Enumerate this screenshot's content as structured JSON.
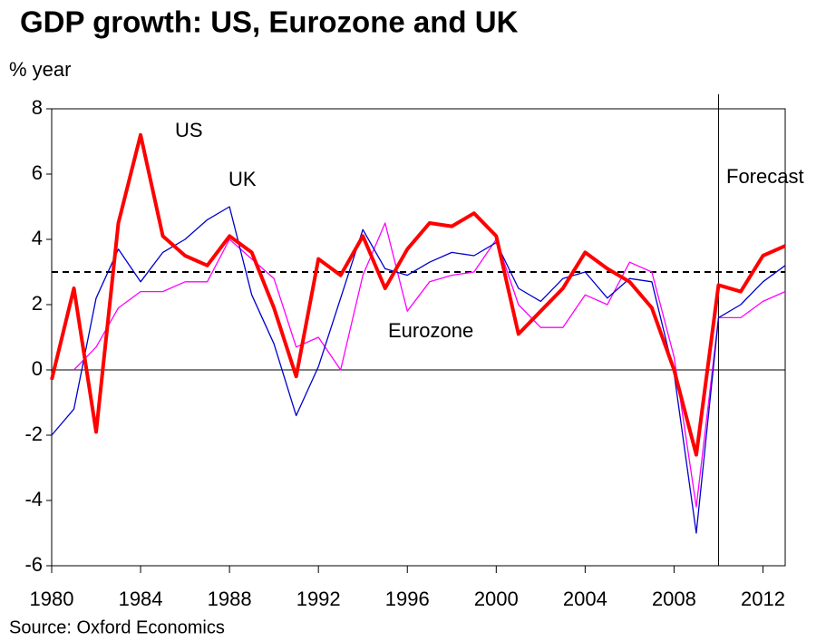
{
  "chart_data": {
    "type": "line",
    "title": "GDP growth: US, Eurozone and UK",
    "y_label": "% year",
    "source": "Source: Oxford Economics",
    "forecast_label": "Forecast",
    "forecast_start": 2010,
    "reference_line": 3,
    "x": [
      1980,
      1981,
      1982,
      1983,
      1984,
      1985,
      1986,
      1987,
      1988,
      1989,
      1990,
      1991,
      1992,
      1993,
      1994,
      1995,
      1996,
      1997,
      1998,
      1999,
      2000,
      2001,
      2002,
      2003,
      2004,
      2005,
      2006,
      2007,
      2008,
      2009,
      2010,
      2011,
      2012,
      2013
    ],
    "series": [
      {
        "name": "US",
        "color": "#ff0000",
        "values": [
          -0.3,
          2.5,
          -1.9,
          4.5,
          7.2,
          4.1,
          3.5,
          3.2,
          4.1,
          3.6,
          1.9,
          -0.2,
          3.4,
          2.9,
          4.1,
          2.5,
          3.7,
          4.5,
          4.4,
          4.8,
          4.1,
          1.1,
          1.8,
          2.5,
          3.6,
          3.1,
          2.7,
          1.9,
          0.0,
          -2.6,
          2.6,
          2.4,
          3.5,
          3.8
        ]
      },
      {
        "name": "UK",
        "color": "#0000cc",
        "values": [
          -2.0,
          -1.2,
          2.2,
          3.7,
          2.7,
          3.6,
          4.0,
          4.6,
          5.0,
          2.3,
          0.8,
          -1.4,
          0.1,
          2.2,
          4.3,
          3.1,
          2.9,
          3.3,
          3.6,
          3.5,
          3.9,
          2.5,
          2.1,
          2.8,
          3.0,
          2.2,
          2.8,
          2.7,
          -0.1,
          -5.0,
          1.6,
          2.0,
          2.7,
          3.2
        ]
      },
      {
        "name": "Eurozone",
        "color": "#ff00ff",
        "values": [
          null,
          0.0,
          0.7,
          1.9,
          2.4,
          2.4,
          2.7,
          2.7,
          4.0,
          3.4,
          2.8,
          0.7,
          1.0,
          0.0,
          2.9,
          4.5,
          1.8,
          2.7,
          2.9,
          3.0,
          4.0,
          2.0,
          1.3,
          1.3,
          2.3,
          2.0,
          3.3,
          3.0,
          0.4,
          -4.2,
          1.6,
          1.6,
          2.1,
          2.4
        ]
      }
    ],
    "xlim": [
      1980,
      2013
    ],
    "xticks": [
      1980,
      1984,
      1988,
      1992,
      1996,
      2000,
      2004,
      2008,
      2012
    ],
    "ylim": [
      -6,
      8
    ],
    "yticks": [
      -6,
      -4,
      -2,
      0,
      2,
      4,
      6,
      8
    ]
  }
}
